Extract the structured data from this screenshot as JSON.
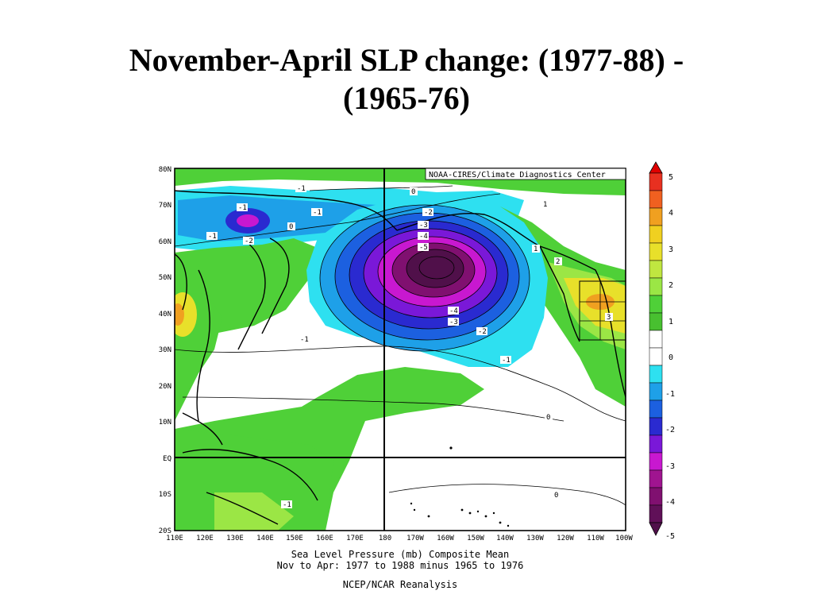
{
  "slide": {
    "title_line1": "November-April SLP change: (1977-88) -",
    "title_line2": "(1965-76)"
  },
  "map": {
    "credit": "NOAA-CIRES/Climate Diagnostics Center",
    "lat_labels": [
      "80N",
      "70N",
      "60N",
      "50N",
      "40N",
      "30N",
      "20N",
      "10N",
      "EQ",
      "10S",
      "20S"
    ],
    "lon_labels": [
      "110E",
      "120E",
      "130E",
      "140E",
      "150E",
      "160E",
      "170E",
      "180",
      "170W",
      "160W",
      "150W",
      "140W",
      "130W",
      "120W",
      "110W",
      "100W"
    ],
    "caption_line1": "Sea Level Pressure (mb) Composite Mean",
    "caption_line2": "Nov to Apr: 1977 to 1988 minus 1965 to 1976",
    "caption_line3": "NCEP/NCAR Reanalysis",
    "contour_labels": [
      "-1",
      "-1",
      "-1",
      "-2",
      "-1",
      "0",
      "-1",
      "0",
      "-2",
      "-3",
      "-4",
      "-5",
      "-4",
      "-3",
      "-2",
      "-1",
      "1",
      "2",
      "3",
      "0",
      "-1",
      "0",
      "1"
    ],
    "colorbar_labels": [
      "5",
      "4",
      "3",
      "2",
      "1",
      "0",
      "-1",
      "-2",
      "-3",
      "-4",
      "-5"
    ],
    "colors": {
      "green": "#4fd038",
      "light_green": "#9be645",
      "yellow": "#e8e02a",
      "orange": "#f0a020",
      "cyan": "#2ee0f0",
      "light_blue": "#1ea0e8",
      "blue": "#1c60e0",
      "dark_blue": "#2a2ad0",
      "purple": "#7a18d8",
      "magenta": "#c818d0",
      "dark_magenta": "#801070",
      "darkest": "#50104a"
    }
  }
}
